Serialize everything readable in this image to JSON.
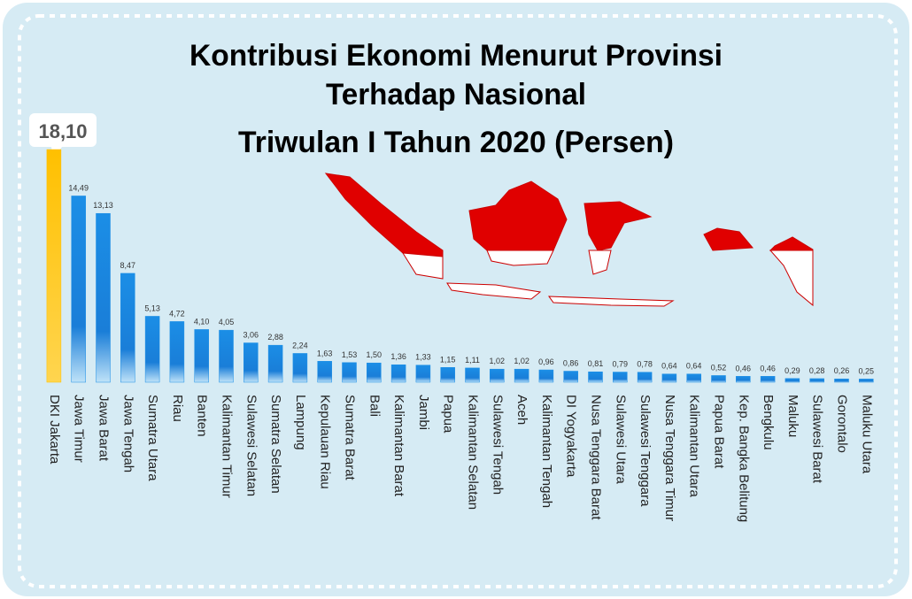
{
  "chart_data": {
    "type": "bar",
    "title": [
      "Kontribusi Ekonomi Menurut Provinsi",
      "Terhadap Nasional",
      "Triwulan I Tahun 2020 (Persen)"
    ],
    "categories": [
      "DKI Jakarta",
      "Jawa Timur",
      "Jawa Barat",
      "Jawa Tengah",
      "Sumatra Utara",
      "Riau",
      "Banten",
      "Kalimantan Timur",
      "Sulawesi Selatan",
      "Sumatra Selatan",
      "Lampung",
      "Kepulauan Riau",
      "Sumatra Barat",
      "Bali",
      "Kalimantan Barat",
      "Jambi",
      "Papua",
      "Kalimantan Selatan",
      "Sulawesi Tengah",
      "Aceh",
      "Kalimantan Tengah",
      "DI Yogyakarta",
      "Nusa Tenggara Barat",
      "Sulawesi Utara",
      "Sulawesi Tenggara",
      "Nusa Tenggara Timur",
      "Kalimantan Utara",
      "Papua Barat",
      "Kep. Bangka Belitung",
      "Bengkulu",
      "Maluku",
      "Sulawesi Barat",
      "Gorontalo",
      "Maluku Utara"
    ],
    "values": [
      18.1,
      14.49,
      13.13,
      8.47,
      5.13,
      4.72,
      4.1,
      4.05,
      3.06,
      2.88,
      2.24,
      1.63,
      1.53,
      1.5,
      1.36,
      1.33,
      1.15,
      1.11,
      1.02,
      1.02,
      0.96,
      0.86,
      0.81,
      0.79,
      0.78,
      0.64,
      0.64,
      0.52,
      0.46,
      0.46,
      0.29,
      0.28,
      0.26,
      0.25
    ],
    "value_labels": [
      "18,10",
      "14,49",
      "13,13",
      "8,47",
      "5,13",
      "4,72",
      "4,10",
      "4,05",
      "3,06",
      "2,88",
      "2,24",
      "1,63",
      "1,53",
      "1,50",
      "1,36",
      "1,33",
      "1,15",
      "1,11",
      "1,02",
      "1,02",
      "0,96",
      "0,86",
      "0,81",
      "0,79",
      "0,78",
      "0,64",
      "0,64",
      "0,52",
      "0,46",
      "0,46",
      "0,29",
      "0,28",
      "0,26",
      "0,25"
    ],
    "colors": [
      "#ffc000",
      "#1b8ee6",
      "#1b8ee6",
      "#1b8ee6",
      "#1b8ee6",
      "#1b8ee6",
      "#1b8ee6",
      "#1b8ee6",
      "#1b8ee6",
      "#1b8ee6",
      "#1b8ee6",
      "#1b8ee6",
      "#1b8ee6",
      "#1b8ee6",
      "#1b8ee6",
      "#1b8ee6",
      "#1b8ee6",
      "#1b8ee6",
      "#1b8ee6",
      "#1b8ee6",
      "#1b8ee6",
      "#1b8ee6",
      "#1b8ee6",
      "#1b8ee6",
      "#1b8ee6",
      "#1b8ee6",
      "#1b8ee6",
      "#1b8ee6",
      "#1b8ee6",
      "#1b8ee6",
      "#1b8ee6",
      "#1b8ee6",
      "#1b8ee6",
      "#1b8ee6"
    ]
  }
}
